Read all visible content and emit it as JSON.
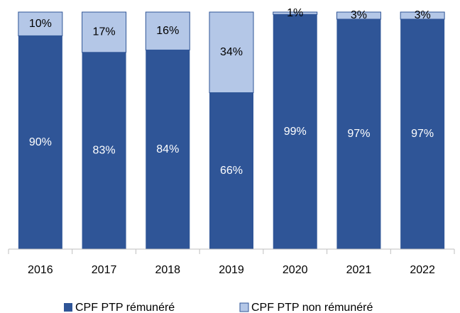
{
  "chart_data": {
    "type": "stacked_bar",
    "categories": [
      "2016",
      "2017",
      "2018",
      "2019",
      "2020",
      "2021",
      "2022"
    ],
    "series": [
      {
        "name": "CPF PTP rémunéré",
        "color": "#2f5597",
        "label_color": "#ffffff",
        "values": [
          90,
          83,
          84,
          66,
          99,
          97,
          97
        ],
        "value_labels": [
          "90%",
          "83%",
          "84%",
          "66%",
          "99%",
          "97%",
          "97%"
        ]
      },
      {
        "name": "CPF PTP non rémunéré",
        "color": "#b4c7e7",
        "label_color": "#000000",
        "values": [
          10,
          17,
          16,
          34,
          1,
          3,
          3
        ],
        "value_labels": [
          "10%",
          "17%",
          "16%",
          "34%",
          "1%",
          "3%",
          "3%"
        ]
      }
    ],
    "ylim": [
      0,
      100
    ],
    "legend": "bottom"
  }
}
